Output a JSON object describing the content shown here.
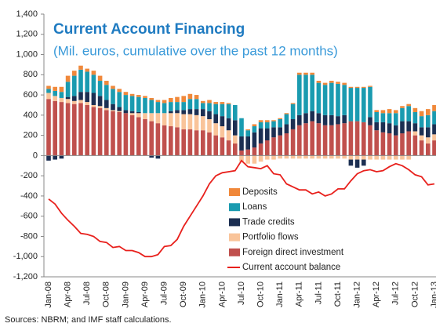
{
  "chart_data": {
    "type": "bar",
    "stacked": true,
    "title": "Current Account Financing",
    "subtitle": "(Mil. euros, cumulative over the past 12 months)",
    "source": "Sources: NBRM; and IMF staff calculations.",
    "categories": [
      "Jan-08",
      null,
      null,
      "Apr-08",
      null,
      null,
      "Jul-08",
      null,
      null,
      "Oct-08",
      null,
      null,
      "Jan-09",
      null,
      null,
      "Apr-09",
      null,
      null,
      "Jul-09",
      null,
      null,
      "Oct-09",
      null,
      null,
      "Jan-10",
      null,
      null,
      "Apr-10",
      null,
      null,
      "Jul-10",
      null,
      null,
      "Oct-10",
      null,
      null,
      "Jan-11",
      null,
      null,
      "Apr-11",
      null,
      null,
      "Jul-11",
      null,
      null,
      "Oct-11",
      null,
      null,
      "Jan-12",
      null,
      null,
      "Apr-12",
      null,
      null,
      "Jul-12",
      null,
      null,
      "Oct-12",
      null,
      null,
      "Jan-13"
    ],
    "ylim": [
      -1200,
      1400
    ],
    "yticks": [
      {
        "value": -1200,
        "label": "-1,200"
      },
      {
        "value": -1000,
        "label": "-1,000"
      },
      -800,
      -600,
      -400,
      -200,
      0,
      200,
      400,
      600,
      800,
      {
        "value": 1000,
        "label": "1,000"
      },
      {
        "value": 1200,
        "label": "1,200"
      },
      {
        "value": 1400,
        "label": "1,400"
      }
    ],
    "grid": false,
    "series": [
      {
        "name": "Deposits",
        "color": "#f0883a",
        "values": [
          30,
          40,
          50,
          60,
          50,
          40,
          30,
          40,
          50,
          40,
          30,
          30,
          30,
          20,
          20,
          20,
          20,
          20,
          30,
          40,
          50,
          60,
          50,
          40,
          20,
          30,
          20,
          20,
          10,
          0,
          0,
          10,
          20,
          20,
          20,
          10,
          10,
          10,
          10,
          20,
          20,
          20,
          20,
          20,
          20,
          20,
          20,
          10,
          10,
          10,
          10,
          20,
          30,
          40,
          30,
          20,
          20,
          40,
          50,
          60,
          60
        ]
      },
      {
        "name": "Loans",
        "color": "#1a9bb0",
        "values": [
          40,
          50,
          60,
          150,
          200,
          220,
          200,
          180,
          150,
          150,
          150,
          150,
          150,
          150,
          150,
          150,
          130,
          110,
          100,
          90,
          80,
          80,
          100,
          100,
          60,
          80,
          100,
          120,
          140,
          150,
          180,
          60,
          60,
          60,
          60,
          60,
          80,
          100,
          150,
          400,
          380,
          360,
          300,
          300,
          320,
          320,
          300,
          330,
          330,
          340,
          300,
          100,
          90,
          100,
          120,
          130,
          150,
          110,
          110,
          120,
          130
        ]
      },
      {
        "name": "Trade credits",
        "color": "#1c2f52",
        "values": [
          -50,
          -40,
          -30,
          20,
          50,
          80,
          100,
          120,
          100,
          80,
          60,
          40,
          30,
          20,
          10,
          0,
          -20,
          -30,
          0,
          20,
          30,
          40,
          50,
          60,
          70,
          80,
          90,
          100,
          120,
          150,
          140,
          130,
          150,
          150,
          120,
          100,
          80,
          90,
          100,
          100,
          100,
          100,
          100,
          100,
          100,
          80,
          80,
          -60,
          -80,
          -60,
          80,
          80,
          100,
          100,
          100,
          120,
          100,
          80,
          80,
          100,
          100
        ]
      },
      {
        "name": "Portfolio flows",
        "color": "#f9c49a",
        "values": [
          60,
          50,
          40,
          40,
          30,
          30,
          30,
          20,
          20,
          20,
          10,
          10,
          0,
          20,
          40,
          60,
          80,
          100,
          120,
          130,
          140,
          150,
          150,
          150,
          140,
          130,
          120,
          110,
          100,
          80,
          -60,
          -80,
          -80,
          -60,
          -40,
          -40,
          -30,
          -30,
          -30,
          -30,
          -30,
          -30,
          -30,
          -30,
          -30,
          -30,
          -30,
          -40,
          -40,
          -40,
          -40,
          -40,
          -40,
          -40,
          -40,
          -40,
          -40,
          40,
          50,
          60,
          60
        ]
      },
      {
        "name": "Foreign direct investment",
        "color": "#c0504d",
        "values": [
          560,
          540,
          530,
          520,
          510,
          520,
          500,
          480,
          470,
          450,
          440,
          430,
          420,
          400,
          380,
          360,
          340,
          320,
          300,
          290,
          280,
          260,
          260,
          250,
          250,
          230,
          200,
          180,
          150,
          120,
          50,
          60,
          80,
          120,
          150,
          180,
          200,
          220,
          260,
          300,
          320,
          340,
          320,
          300,
          300,
          310,
          320,
          340,
          340,
          330,
          300,
          250,
          230,
          220,
          200,
          220,
          240,
          200,
          150,
          120,
          150
        ]
      },
      {
        "name": "Current account balance",
        "type": "line",
        "color": "#e8201c",
        "values": [
          -430,
          -480,
          -570,
          -640,
          -700,
          -770,
          -780,
          -800,
          -850,
          -860,
          -910,
          -900,
          -940,
          -940,
          -960,
          -1000,
          -1000,
          -980,
          -900,
          -890,
          -830,
          -700,
          -600,
          -500,
          -400,
          -280,
          -200,
          -170,
          -160,
          -150,
          -50,
          -110,
          -120,
          -130,
          -100,
          -180,
          -190,
          -280,
          -310,
          -340,
          -340,
          -380,
          -360,
          -400,
          -380,
          -330,
          -330,
          -250,
          -180,
          -150,
          -140,
          -160,
          -150,
          -110,
          -80,
          -100,
          -140,
          -190,
          -210,
          -290,
          -280
        ]
      }
    ]
  }
}
